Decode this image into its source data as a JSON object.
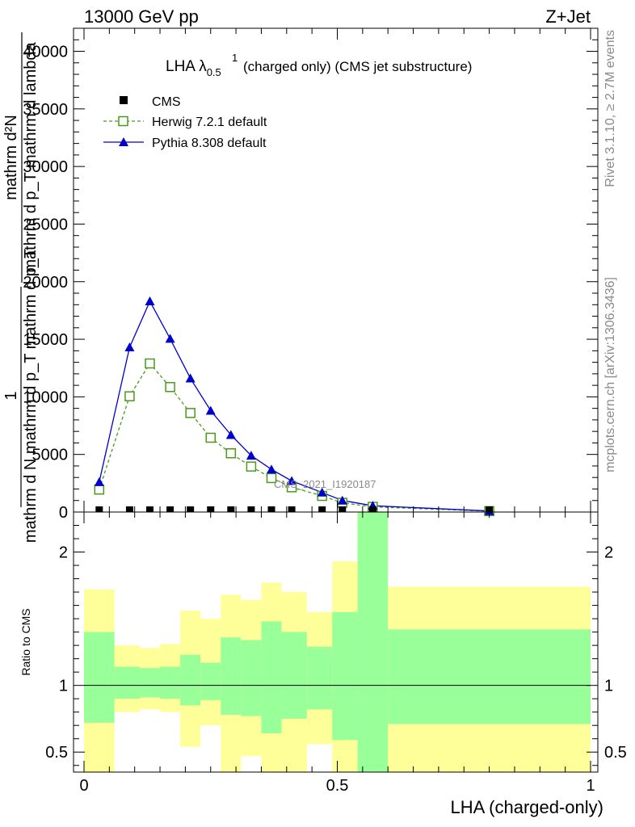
{
  "header": {
    "left": "13000 GeV pp",
    "right": "Z+Jet"
  },
  "side": {
    "rivet": "Rivet 3.1.10, ≥ 2.7M events",
    "mcplots": "mcplots.cern.ch [arXiv:1306.3436]"
  },
  "watermark": "CMS_2021_I1920187",
  "colors": {
    "herwig": "#4a9a1a",
    "pythia": "#0000cc",
    "cms": "#000000",
    "band1": "#99ff99",
    "band2": "#ffff99"
  },
  "chart_data": [
    {
      "type": "line",
      "title": "LHA λ",
      "title_sup": "1",
      "title_sub": "0.5",
      "title_rest": "(charged only) (CMS jet substructure)",
      "ylabel_numerator": "mathrm d²N",
      "ylabel_denominator": "mathrm d p_T mathrm d lambda",
      "ylabel_frac_num": "1",
      "ylabel_frac_den": "mathrm d N mathrm d p_T mathrm d p_T",
      "ylim": [
        0,
        42000
      ],
      "xlim": [
        0,
        1
      ],
      "yticks": [
        {
          "v": 0,
          "label": "0"
        },
        {
          "v": 5000,
          "label": "5000"
        },
        {
          "v": 10000,
          "label": "10000"
        },
        {
          "v": 15000,
          "label": "15000"
        },
        {
          "v": 20000,
          "label": "20000"
        },
        {
          "v": 25000,
          "label": "25000"
        },
        {
          "v": 30000,
          "label": "30000"
        },
        {
          "v": 35000,
          "label": "35000"
        },
        {
          "v": 40000,
          "label": "40000"
        }
      ],
      "legend": [
        {
          "name": "CMS",
          "style": "square"
        },
        {
          "name": "Herwig 7.2.1 default",
          "style": "herwig"
        },
        {
          "name": "Pythia 8.308 default",
          "style": "pythia"
        }
      ],
      "series": [
        {
          "name": "CMS",
          "x": [
            0.03,
            0.09,
            0.13,
            0.17,
            0.21,
            0.25,
            0.29,
            0.33,
            0.37,
            0.41,
            0.47,
            0.51,
            0.57,
            0.8
          ],
          "y": [
            5,
            4,
            4,
            4,
            4,
            3,
            3,
            3,
            3,
            3,
            3,
            2,
            2,
            1
          ]
        },
        {
          "name": "Herwig 7.2.1 default",
          "x": [
            0.03,
            0.09,
            0.13,
            0.17,
            0.21,
            0.25,
            0.29,
            0.33,
            0.37,
            0.41,
            0.47,
            0.51,
            0.57,
            0.8
          ],
          "y": [
            1950,
            10050,
            12900,
            10850,
            8600,
            6450,
            5100,
            3950,
            2950,
            2150,
            1400,
            800,
            450,
            80
          ]
        },
        {
          "name": "Pythia 8.308 default",
          "x": [
            0.03,
            0.09,
            0.13,
            0.17,
            0.21,
            0.25,
            0.29,
            0.33,
            0.37,
            0.41,
            0.47,
            0.51,
            0.57,
            0.8
          ],
          "y": [
            2600,
            14300,
            18300,
            15050,
            11600,
            8800,
            6700,
            4900,
            3700,
            2700,
            1700,
            1000,
            550,
            90
          ]
        }
      ]
    },
    {
      "type": "area",
      "ylabel": "Ratio to CMS",
      "xlabel": "LHA (charged-only)",
      "ylim": [
        0.35,
        2.3
      ],
      "xlim": [
        0,
        1
      ],
      "xticks": [
        {
          "v": 0,
          "label": "0"
        },
        {
          "v": 0.5,
          "label": "0.5"
        },
        {
          "v": 1,
          "label": "1"
        }
      ],
      "yticks": [
        {
          "v": 0.5,
          "label": "0.5"
        },
        {
          "v": 1,
          "label": "1"
        },
        {
          "v": 2,
          "label": "2"
        }
      ],
      "reference_line": 1,
      "bins": [
        {
          "x0": 0.0,
          "x1": 0.06,
          "inner": [
            0.72,
            1.4
          ],
          "outer": [
            0.35,
            1.72
          ]
        },
        {
          "x0": 0.06,
          "x1": 0.11,
          "inner": [
            0.9,
            1.14
          ],
          "outer": [
            0.8,
            1.3
          ]
        },
        {
          "x0": 0.11,
          "x1": 0.15,
          "inner": [
            0.91,
            1.13
          ],
          "outer": [
            0.82,
            1.28
          ]
        },
        {
          "x0": 0.15,
          "x1": 0.19,
          "inner": [
            0.9,
            1.14
          ],
          "outer": [
            0.8,
            1.31
          ]
        },
        {
          "x0": 0.19,
          "x1": 0.23,
          "inner": [
            0.85,
            1.23
          ],
          "outer": [
            0.54,
            1.56
          ]
        },
        {
          "x0": 0.23,
          "x1": 0.27,
          "inner": [
            0.89,
            1.17
          ],
          "outer": [
            0.7,
            1.5
          ]
        },
        {
          "x0": 0.27,
          "x1": 0.31,
          "inner": [
            0.78,
            1.36
          ],
          "outer": [
            0.35,
            1.68
          ]
        },
        {
          "x0": 0.31,
          "x1": 0.35,
          "inner": [
            0.77,
            1.34
          ],
          "outer": [
            0.47,
            1.64
          ]
        },
        {
          "x0": 0.35,
          "x1": 0.39,
          "inner": [
            0.64,
            1.48
          ],
          "outer": [
            0.35,
            1.77
          ]
        },
        {
          "x0": 0.39,
          "x1": 0.44,
          "inner": [
            0.75,
            1.4
          ],
          "outer": [
            0.35,
            1.7
          ]
        },
        {
          "x0": 0.44,
          "x1": 0.49,
          "inner": [
            0.82,
            1.29
          ],
          "outer": [
            0.56,
            1.55
          ]
        },
        {
          "x0": 0.49,
          "x1": 0.54,
          "inner": [
            0.59,
            1.55
          ],
          "outer": [
            0.35,
            1.93
          ]
        },
        {
          "x0": 0.54,
          "x1": 0.6,
          "inner": [
            0.35,
            2.3
          ],
          "outer": [
            0.35,
            2.3
          ]
        },
        {
          "x0": 0.6,
          "x1": 1.0,
          "inner": [
            0.71,
            1.42
          ],
          "outer": [
            0.35,
            1.74
          ]
        }
      ]
    }
  ]
}
